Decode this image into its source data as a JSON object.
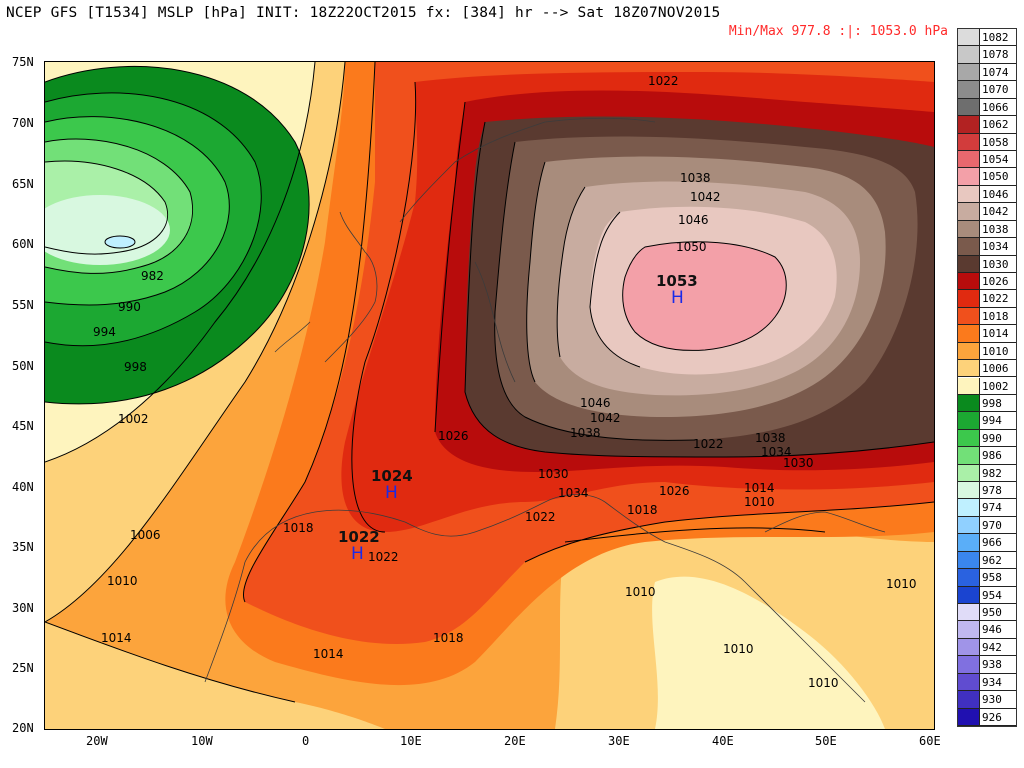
{
  "header": {
    "title": "NCEP GFS [T1534] MSLP [hPa] INIT: 18Z22OCT2015 fx: [384] hr --> Sat 18Z07NOV2015",
    "minmax": "Min/Max 977.8 :|: 1053.0 hPa"
  },
  "axes": {
    "lat_labels": [
      "75N",
      "70N",
      "65N",
      "60N",
      "55N",
      "50N",
      "45N",
      "40N",
      "35N",
      "30N",
      "25N",
      "20N"
    ],
    "lon_labels": [
      "20W",
      "10W",
      "0",
      "10E",
      "20E",
      "30E",
      "40E",
      "50E",
      "60E"
    ]
  },
  "legend": {
    "levels": [
      {
        "label": "1082",
        "color": "#dcdcdc"
      },
      {
        "label": "1078",
        "color": "#c8c8c8"
      },
      {
        "label": "1074",
        "color": "#a8a8a8"
      },
      {
        "label": "1070",
        "color": "#8c8c8c"
      },
      {
        "label": "1066",
        "color": "#6e6e6e"
      },
      {
        "label": "1062",
        "color": "#b22222"
      },
      {
        "label": "1058",
        "color": "#d23c3c"
      },
      {
        "label": "1054",
        "color": "#e8686e"
      },
      {
        "label": "1050",
        "color": "#f3a0a8"
      },
      {
        "label": "1046",
        "color": "#e8c8c0"
      },
      {
        "label": "1042",
        "color": "#c8aca0"
      },
      {
        "label": "1038",
        "color": "#a88c7c"
      },
      {
        "label": "1034",
        "color": "#7a5a4c"
      },
      {
        "label": "1030",
        "color": "#5a3a30"
      },
      {
        "label": "1026",
        "color": "#b80c0c"
      },
      {
        "label": "1022",
        "color": "#e02a10"
      },
      {
        "label": "1018",
        "color": "#f0501c"
      },
      {
        "label": "1014",
        "color": "#fb7a1c"
      },
      {
        "label": "1010",
        "color": "#fca43c"
      },
      {
        "label": "1006",
        "color": "#fdd27a"
      },
      {
        "label": "1002",
        "color": "#fef4be"
      },
      {
        "label": "998",
        "color": "#0a8a1e"
      },
      {
        "label": "994",
        "color": "#1ca832"
      },
      {
        "label": "990",
        "color": "#3cc84c"
      },
      {
        "label": "986",
        "color": "#72e078"
      },
      {
        "label": "982",
        "color": "#aaf0a8"
      },
      {
        "label": "978",
        "color": "#d8f8e0"
      },
      {
        "label": "974",
        "color": "#bff0ff"
      },
      {
        "label": "970",
        "color": "#90d0ff"
      },
      {
        "label": "966",
        "color": "#5aaef8"
      },
      {
        "label": "962",
        "color": "#3a86ee"
      },
      {
        "label": "958",
        "color": "#2a62e0"
      },
      {
        "label": "954",
        "color": "#1a44d0"
      },
      {
        "label": "950",
        "color": "#e0dcf8"
      },
      {
        "label": "946",
        "color": "#c0b8f0"
      },
      {
        "label": "942",
        "color": "#a094e8"
      },
      {
        "label": "938",
        "color": "#8070e0"
      },
      {
        "label": "934",
        "color": "#604cd0"
      },
      {
        "label": "930",
        "color": "#4030c0"
      },
      {
        "label": "926",
        "color": "#2010b0"
      }
    ]
  },
  "centers": [
    {
      "value": "1053",
      "symbol": "H"
    },
    {
      "value": "1024",
      "symbol": "H"
    },
    {
      "value": "1022",
      "symbol": "H"
    }
  ],
  "contour_labels": [
    "1022",
    "982",
    "990",
    "994",
    "998",
    "1002",
    "1006",
    "1010",
    "1014",
    "1014",
    "1018",
    "1018",
    "1022",
    "1026",
    "1030",
    "1034",
    "1038",
    "1042",
    "1046",
    "1050",
    "1038",
    "1042",
    "1046",
    "1038",
    "1034",
    "1030",
    "1022",
    "1026",
    "1014",
    "1010",
    "1018",
    "1022",
    "1010",
    "1010",
    "1010",
    "1010"
  ]
}
